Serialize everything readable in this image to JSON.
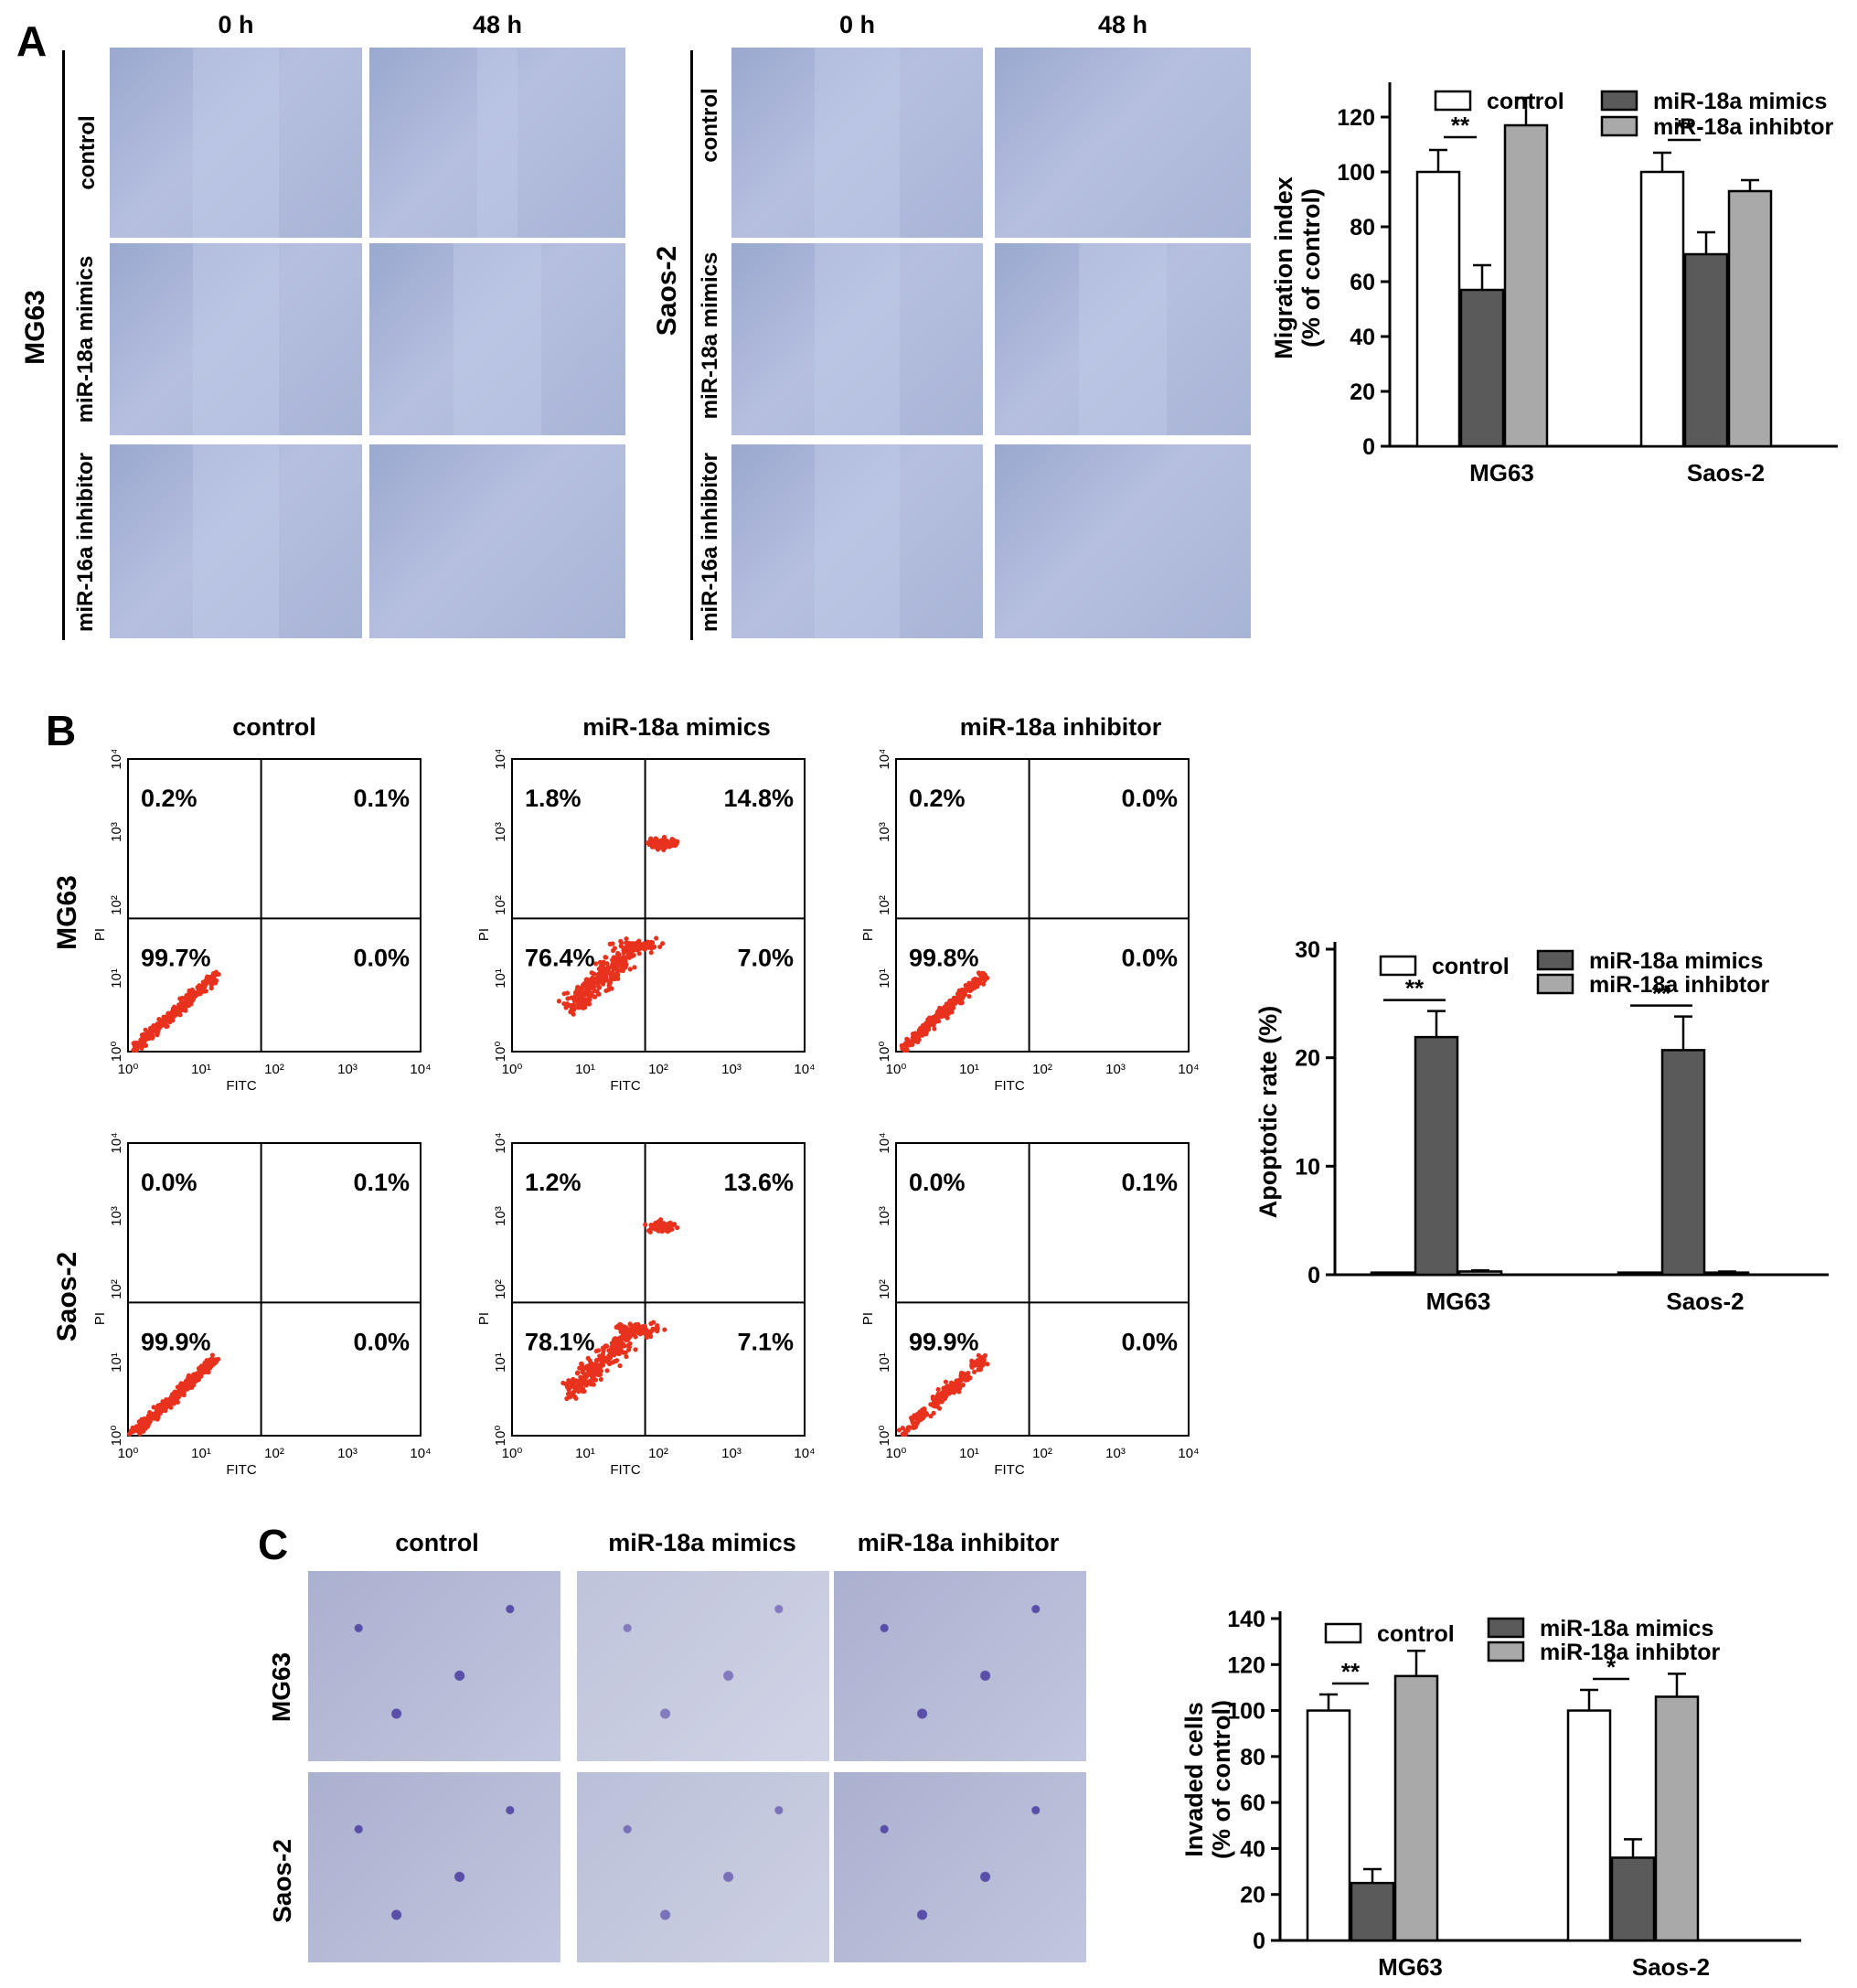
{
  "panels": {
    "A": {
      "letter": "A",
      "col_heads": [
        "0 h",
        "48 h",
        "0 h",
        "48 h"
      ],
      "cell_lines": [
        "MG63",
        "Saos-2"
      ],
      "row_labels_left": [
        "control",
        "miR-18a mimics",
        "miR-16a inhibitor"
      ],
      "row_labels_right": [
        "control",
        "miR-18a mimics",
        "miR-16a inhibitor"
      ]
    },
    "B": {
      "letter": "B",
      "col_heads": [
        "control",
        "miR-18a mimics",
        "miR-18a inhibitor"
      ],
      "row_labels": [
        "MG63",
        "Saos-2"
      ],
      "axis_x": "FITC",
      "axis_y": "PI",
      "ticks": [
        "10⁰",
        "10¹",
        "10²",
        "10³",
        "10⁴"
      ],
      "quadrants": [
        [
          [
            "0.2%",
            "0.1%",
            "99.7%",
            "0.0%"
          ],
          [
            "1.8%",
            "14.8%",
            "76.4%",
            "7.0%"
          ],
          [
            "0.2%",
            "0.0%",
            "99.8%",
            "0.0%"
          ]
        ],
        [
          [
            "0.0%",
            "0.1%",
            "99.9%",
            "0.0%"
          ],
          [
            "1.2%",
            "13.6%",
            "78.1%",
            "7.1%"
          ],
          [
            "0.0%",
            "0.1%",
            "99.9%",
            "0.0%"
          ]
        ]
      ]
    },
    "C": {
      "letter": "C",
      "col_heads": [
        "control",
        "miR-18a mimics",
        "miR-18a inhibitor"
      ],
      "row_labels": [
        "MG63",
        "Saos-2"
      ]
    }
  },
  "chart_data": [
    {
      "type": "bar",
      "categories": [
        "MG63",
        "Saos-2"
      ],
      "series": [
        {
          "name": "control",
          "values": [
            100,
            100
          ],
          "errors": [
            8,
            7
          ]
        },
        {
          "name": "miR-18a mimics",
          "values": [
            57,
            70
          ],
          "errors": [
            9,
            8
          ]
        },
        {
          "name": "miR-18a inhibtor",
          "values": [
            117,
            93
          ],
          "errors": [
            10,
            4
          ]
        }
      ],
      "ylabel_lines": [
        "Migration index",
        "(% of control)"
      ],
      "ylim": [
        0,
        130
      ],
      "yticks": [
        0,
        20,
        40,
        60,
        80,
        100,
        120
      ],
      "significance": [
        "**",
        "**"
      ],
      "colors": [
        "#ffffff",
        "#5a5a5a",
        "#a9a9a9"
      ]
    },
    {
      "type": "bar",
      "categories": [
        "MG63",
        "Saos-2"
      ],
      "series": [
        {
          "name": "control",
          "values": [
            0.2,
            0.2
          ],
          "errors": [
            0,
            0
          ]
        },
        {
          "name": "miR-18a mimics",
          "values": [
            21.9,
            20.7
          ],
          "errors": [
            2.4,
            3.1
          ]
        },
        {
          "name": "miR-18a inhibtor",
          "values": [
            0.3,
            0.2
          ],
          "errors": [
            0.1,
            0.1
          ]
        }
      ],
      "ylabel_lines": [
        "Apoptotic rate (%)"
      ],
      "ylim": [
        0,
        30
      ],
      "yticks": [
        0,
        10,
        20,
        30
      ],
      "significance": [
        "**",
        "**"
      ],
      "colors": [
        "#ffffff",
        "#5a5a5a",
        "#a9a9a9"
      ]
    },
    {
      "type": "bar",
      "categories": [
        "MG63",
        "Saos-2"
      ],
      "series": [
        {
          "name": "control",
          "values": [
            100,
            100
          ],
          "errors": [
            7,
            9
          ]
        },
        {
          "name": "miR-18a mimics",
          "values": [
            25,
            36
          ],
          "errors": [
            6,
            8
          ]
        },
        {
          "name": "miR-18a inhibtor",
          "values": [
            115,
            106
          ],
          "errors": [
            11,
            10
          ]
        }
      ],
      "ylabel_lines": [
        "Invaded cells",
        "(% of control)"
      ],
      "ylim": [
        0,
        140
      ],
      "yticks": [
        0,
        20,
        40,
        60,
        80,
        100,
        120,
        140
      ],
      "significance": [
        "**",
        "*"
      ],
      "colors": [
        "#ffffff",
        "#5a5a5a",
        "#a9a9a9"
      ]
    }
  ]
}
